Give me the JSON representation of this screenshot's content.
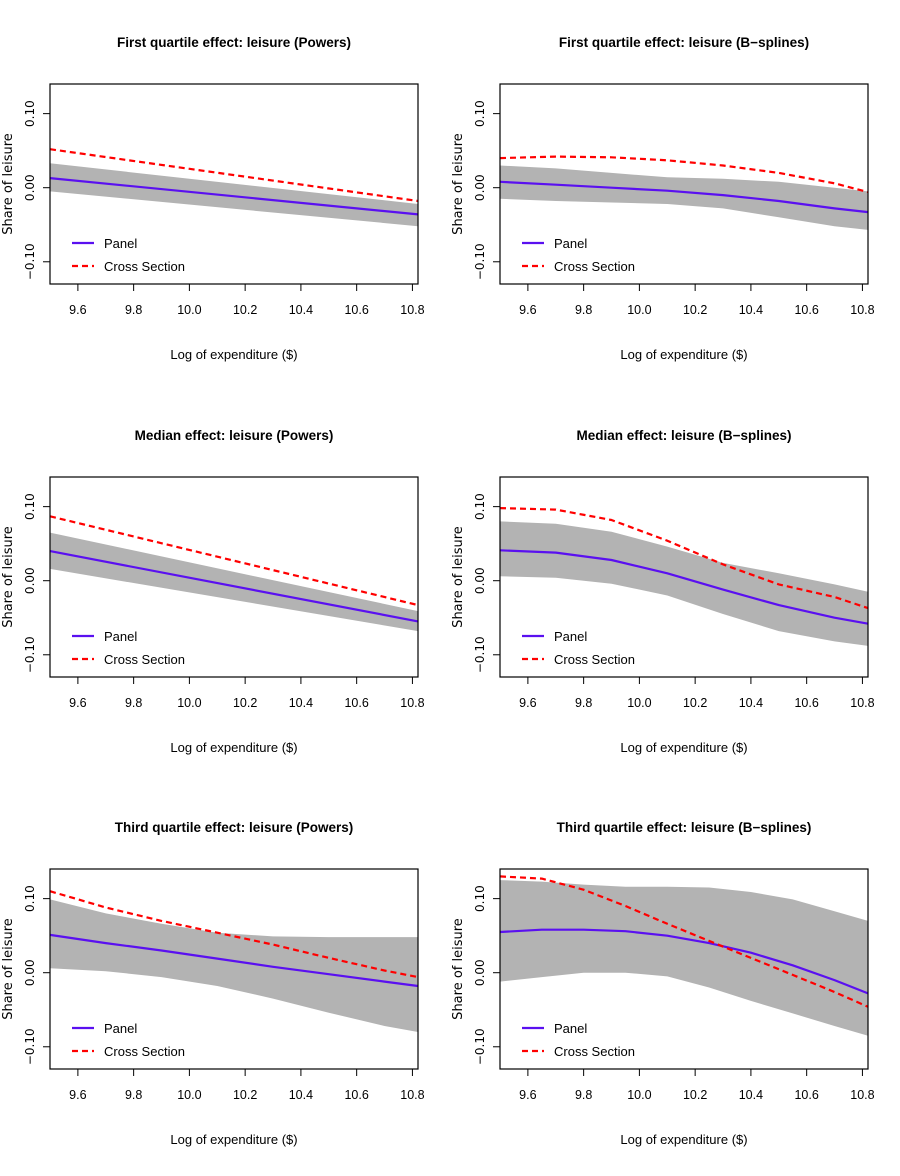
{
  "chart_data": [
    {
      "type": "line",
      "title": "First quartile effect: leisure (Powers)",
      "xlabel": "Log of expenditure ($)",
      "ylabel": "Share of leisure",
      "xlim": [
        9.5,
        10.82
      ],
      "ylim": [
        -0.13,
        0.14
      ],
      "xticks": [
        9.6,
        9.8,
        10.0,
        10.2,
        10.4,
        10.6,
        10.8
      ],
      "xtick_labels": [
        "9.6",
        "9.8",
        "10.0",
        "10.2",
        "10.4",
        "10.6",
        "10.8"
      ],
      "yticks": [
        -0.1,
        0.0,
        0.1
      ],
      "ytick_labels": [
        "−0.10",
        "0.00",
        "0.10"
      ],
      "x": [
        9.5,
        10.82
      ],
      "series": [
        {
          "name": "Panel",
          "x": [
            9.5,
            10.82
          ],
          "values": [
            0.013,
            -0.036
          ]
        },
        {
          "name": "Cross Section",
          "x": [
            9.5,
            10.82
          ],
          "values": [
            0.052,
            -0.018
          ]
        }
      ],
      "band": {
        "x": [
          9.5,
          10.82
        ],
        "lower": [
          -0.005,
          -0.052
        ],
        "upper": [
          0.033,
          -0.022
        ]
      },
      "legend": {
        "position": "bottom-left",
        "entries": [
          "Panel",
          "Cross Section"
        ]
      }
    },
    {
      "type": "line",
      "title": "First quartile effect: leisure (B−splines)",
      "xlabel": "Log of expenditure ($)",
      "ylabel": "Share of leisure",
      "xlim": [
        9.5,
        10.82
      ],
      "ylim": [
        -0.13,
        0.14
      ],
      "xticks": [
        9.6,
        9.8,
        10.0,
        10.2,
        10.4,
        10.6,
        10.8
      ],
      "xtick_labels": [
        "9.6",
        "9.8",
        "10.0",
        "10.2",
        "10.4",
        "10.6",
        "10.8"
      ],
      "yticks": [
        -0.1,
        0.0,
        0.1
      ],
      "ytick_labels": [
        "−0.10",
        "0.00",
        "0.10"
      ],
      "x": [
        9.5,
        9.7,
        9.9,
        10.1,
        10.3,
        10.5,
        10.7,
        10.82
      ],
      "series": [
        {
          "name": "Panel",
          "values": [
            0.008,
            0.004,
            0.0,
            -0.004,
            -0.01,
            -0.018,
            -0.028,
            -0.033
          ]
        },
        {
          "name": "Cross Section",
          "values": [
            0.04,
            0.042,
            0.041,
            0.037,
            0.03,
            0.02,
            0.006,
            -0.006
          ]
        }
      ],
      "band": {
        "lower": [
          -0.015,
          -0.018,
          -0.02,
          -0.022,
          -0.028,
          -0.04,
          -0.052,
          -0.057
        ],
        "upper": [
          0.03,
          0.026,
          0.02,
          0.014,
          0.012,
          0.008,
          0.0,
          -0.005
        ]
      },
      "legend": {
        "position": "bottom-left",
        "entries": [
          "Panel",
          "Cross Section"
        ]
      }
    },
    {
      "type": "line",
      "title": "Median effect: leisure (Powers)",
      "xlabel": "Log of expenditure ($)",
      "ylabel": "Share of leisure",
      "xlim": [
        9.5,
        10.82
      ],
      "ylim": [
        -0.13,
        0.14
      ],
      "xticks": [
        9.6,
        9.8,
        10.0,
        10.2,
        10.4,
        10.6,
        10.8
      ],
      "xtick_labels": [
        "9.6",
        "9.8",
        "10.0",
        "10.2",
        "10.4",
        "10.6",
        "10.8"
      ],
      "yticks": [
        -0.1,
        0.0,
        0.1
      ],
      "ytick_labels": [
        "−0.10",
        "0.00",
        "0.10"
      ],
      "x": [
        9.5,
        10.82
      ],
      "series": [
        {
          "name": "Panel",
          "x": [
            9.5,
            10.82
          ],
          "values": [
            0.04,
            -0.055
          ]
        },
        {
          "name": "Cross Section",
          "x": [
            9.5,
            10.82
          ],
          "values": [
            0.087,
            -0.033
          ]
        }
      ],
      "band": {
        "x": [
          9.5,
          10.82
        ],
        "lower": [
          0.016,
          -0.068
        ],
        "upper": [
          0.065,
          -0.041
        ]
      },
      "legend": {
        "position": "bottom-left",
        "entries": [
          "Panel",
          "Cross Section"
        ]
      }
    },
    {
      "type": "line",
      "title": "Median effect: leisure (B−splines)",
      "xlabel": "Log of expenditure ($)",
      "ylabel": "Share of leisure",
      "xlim": [
        9.5,
        10.82
      ],
      "ylim": [
        -0.13,
        0.14
      ],
      "xticks": [
        9.6,
        9.8,
        10.0,
        10.2,
        10.4,
        10.6,
        10.8
      ],
      "xtick_labels": [
        "9.6",
        "9.8",
        "10.0",
        "10.2",
        "10.4",
        "10.6",
        "10.8"
      ],
      "yticks": [
        -0.1,
        0.0,
        0.1
      ],
      "ytick_labels": [
        "−0.10",
        "0.00",
        "0.10"
      ],
      "x": [
        9.5,
        9.7,
        9.9,
        10.1,
        10.3,
        10.5,
        10.7,
        10.82
      ],
      "series": [
        {
          "name": "Panel",
          "values": [
            0.041,
            0.038,
            0.028,
            0.01,
            -0.012,
            -0.033,
            -0.05,
            -0.058
          ]
        },
        {
          "name": "Cross Section",
          "values": [
            0.098,
            0.096,
            0.082,
            0.054,
            0.022,
            -0.005,
            -0.022,
            -0.037
          ]
        }
      ],
      "band": {
        "lower": [
          0.006,
          0.004,
          -0.004,
          -0.02,
          -0.045,
          -0.068,
          -0.082,
          -0.088
        ],
        "upper": [
          0.08,
          0.077,
          0.066,
          0.046,
          0.024,
          0.01,
          -0.005,
          -0.015
        ]
      },
      "legend": {
        "position": "bottom-left",
        "entries": [
          "Panel",
          "Cross Section"
        ]
      }
    },
    {
      "type": "line",
      "title": "Third quartile effect: leisure (Powers)",
      "xlabel": "Log of expenditure ($)",
      "ylabel": "Share of leisure",
      "xlim": [
        9.5,
        10.82
      ],
      "ylim": [
        -0.13,
        0.14
      ],
      "xticks": [
        9.6,
        9.8,
        10.0,
        10.2,
        10.4,
        10.6,
        10.8
      ],
      "xtick_labels": [
        "9.6",
        "9.8",
        "10.0",
        "10.2",
        "10.4",
        "10.6",
        "10.8"
      ],
      "yticks": [
        -0.1,
        0.0,
        0.1
      ],
      "ytick_labels": [
        "−0.10",
        "0.00",
        "0.10"
      ],
      "x": [
        9.5,
        9.7,
        9.9,
        10.1,
        10.3,
        10.5,
        10.7,
        10.82
      ],
      "series": [
        {
          "name": "Panel",
          "values": [
            0.051,
            0.04,
            0.03,
            0.019,
            0.008,
            -0.002,
            -0.012,
            -0.018
          ]
        },
        {
          "name": "Cross Section",
          "values": [
            0.11,
            0.088,
            0.07,
            0.054,
            0.038,
            0.02,
            0.003,
            -0.006
          ]
        }
      ],
      "band": {
        "lower": [
          0.006,
          0.002,
          -0.006,
          -0.018,
          -0.035,
          -0.054,
          -0.072,
          -0.08
        ],
        "upper": [
          0.099,
          0.08,
          0.066,
          0.054,
          0.049,
          0.048,
          0.048,
          0.048
        ]
      },
      "legend": {
        "position": "bottom-left",
        "entries": [
          "Panel",
          "Cross Section"
        ]
      }
    },
    {
      "type": "line",
      "title": "Third quartile effect: leisure (B−splines)",
      "xlabel": "Log of expenditure ($)",
      "ylabel": "Share of leisure",
      "xlim": [
        9.5,
        10.82
      ],
      "ylim": [
        -0.13,
        0.14
      ],
      "xticks": [
        9.6,
        9.8,
        10.0,
        10.2,
        10.4,
        10.6,
        10.8
      ],
      "xtick_labels": [
        "9.6",
        "9.8",
        "10.0",
        "10.2",
        "10.4",
        "10.6",
        "10.8"
      ],
      "yticks": [
        -0.1,
        0.0,
        0.1
      ],
      "ytick_labels": [
        "−0.10",
        "0.00",
        "0.10"
      ],
      "x": [
        9.5,
        9.65,
        9.8,
        9.95,
        10.1,
        10.25,
        10.4,
        10.55,
        10.7,
        10.82
      ],
      "series": [
        {
          "name": "Panel",
          "values": [
            0.055,
            0.058,
            0.058,
            0.056,
            0.05,
            0.04,
            0.027,
            0.01,
            -0.01,
            -0.028
          ]
        },
        {
          "name": "Cross Section",
          "values": [
            0.13,
            0.127,
            0.112,
            0.09,
            0.066,
            0.043,
            0.02,
            -0.003,
            -0.026,
            -0.046
          ]
        }
      ],
      "band": {
        "lower": [
          -0.012,
          -0.006,
          0.0,
          0.0,
          -0.005,
          -0.02,
          -0.038,
          -0.055,
          -0.072,
          -0.085
        ],
        "upper": [
          0.125,
          0.123,
          0.119,
          0.116,
          0.116,
          0.115,
          0.109,
          0.099,
          0.083,
          0.07
        ]
      },
      "legend": {
        "position": "bottom-left",
        "entries": [
          "Panel",
          "Cross Section"
        ]
      }
    }
  ],
  "colors": {
    "panel": "#5a10f0",
    "cross_section": "#ff0000",
    "band": "#b3b3b3"
  }
}
